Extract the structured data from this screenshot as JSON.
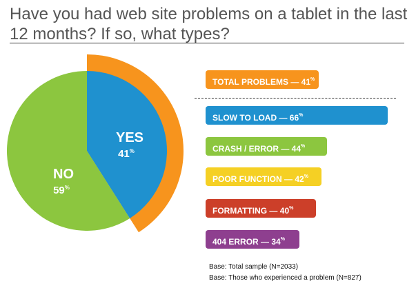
{
  "title": "Have you had web site problems on a tablet in the last 12 months?  If so, what types?",
  "chart_data": [
    {
      "type": "pie",
      "slices": [
        {
          "label": "YES",
          "value": 41,
          "display": "41",
          "color": "#1f91cf"
        },
        {
          "label": "NO",
          "value": 59,
          "display": "59",
          "color": "#8cc63f"
        }
      ],
      "highlight_ring": {
        "slice": "YES",
        "color": "#f7941d"
      },
      "unit": "%"
    },
    {
      "type": "bar",
      "orientation": "horizontal",
      "categories": [
        "TOTAL PROBLEMS",
        "SLOW TO LOAD",
        "CRASH / ERROR",
        "POOR FUNCTION",
        "FORMATTING",
        "404 ERROR"
      ],
      "values": [
        41,
        66,
        44,
        42,
        40,
        34
      ],
      "colors": [
        "#f7941d",
        "#1f91cf",
        "#8cc63f",
        "#f5d024",
        "#cc3f29",
        "#8e3f8f"
      ],
      "separator_after": "TOTAL PROBLEMS",
      "unit": "%"
    }
  ],
  "bars": [
    {
      "text": "TOTAL PROBLEMS — 41",
      "unit": "%"
    },
    {
      "text": "SLOW TO LOAD — 66",
      "unit": "%"
    },
    {
      "text": "CRASH / ERROR — 44",
      "unit": "%"
    },
    {
      "text": "POOR FUNCTION — 42",
      "unit": "%"
    },
    {
      "text": "FORMATTING — 40",
      "unit": "%"
    },
    {
      "text": "404 ERROR — 34",
      "unit": "%"
    }
  ],
  "notes": [
    "Base: Total sample (N=2033)",
    "Base: Those who experienced a problem (N=827)"
  ]
}
